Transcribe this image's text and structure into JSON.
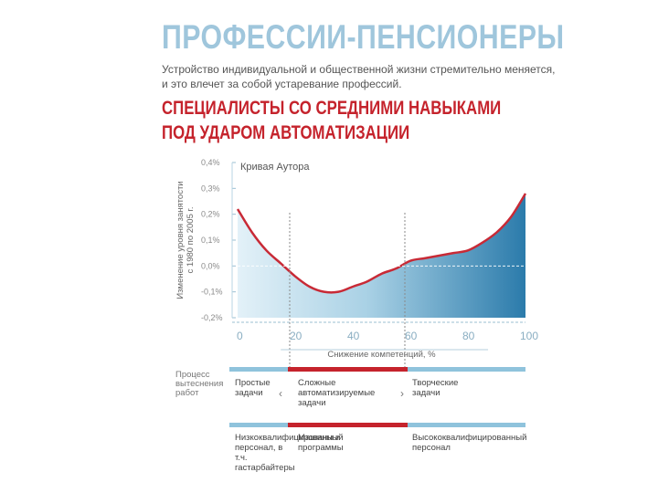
{
  "header": {
    "title": "ПРОФЕССИИ-ПЕНСИОНЕРЫ",
    "intro_line1": "Устройство индивидуальной и общественной жизни стремительно меняется,",
    "intro_line2": "и это влечет за собой устаревание профессий.",
    "red_line1": "СПЕЦИАЛИСТЫ СО СРЕДНИМИ НАВЫКАМИ",
    "red_line2": "ПОД УДАРОМ АВТОМАТИЗАЦИИ"
  },
  "chart_data": {
    "type": "area",
    "title": "Кривая Аутора",
    "xlabel": "Снижение компетенций, %",
    "ylabel": "Изменение уровня занятости с 1980 по 2005 г.",
    "xlim": [
      0,
      100
    ],
    "ylim": [
      -0.2,
      0.4
    ],
    "x_ticks": [
      "0",
      "20",
      "40",
      "60",
      "80",
      "100"
    ],
    "y_ticks": [
      "0,4%",
      "0,3%",
      "0,2%",
      "0,1%",
      "0,0%",
      "-0,1%",
      "-0,2%"
    ],
    "zero_line": true,
    "series": [
      {
        "x": [
          0,
          5,
          10,
          15,
          20,
          25,
          30,
          35,
          40,
          45,
          50,
          55,
          60,
          65,
          70,
          75,
          80,
          85,
          90,
          95,
          100
        ],
        "y": [
          0.22,
          0.13,
          0.06,
          0.01,
          -0.04,
          -0.08,
          -0.1,
          -0.1,
          -0.08,
          -0.06,
          -0.03,
          -0.01,
          0.02,
          0.03,
          0.04,
          0.05,
          0.06,
          0.09,
          0.13,
          0.19,
          0.28
        ]
      }
    ],
    "dividers_x": [
      20,
      60
    ]
  },
  "legend_rows": {
    "row1_label": "Процесс вытеснения работ",
    "row1_items": [
      "Простые задачи",
      "Сложные автоматизируемые задачи",
      "Творческие задачи"
    ],
    "row2_items": [
      "Низкоквалифицированный персонал, в т.ч. гастарбайтеры",
      "Машины и программы",
      "Высококвалифицированный персонал"
    ]
  },
  "colors": {
    "title_blue": "#9fc6dc",
    "accent_red": "#c5232c",
    "curve_red": "#c82a36",
    "bar_blue": "#8fc3dc",
    "area_light": "#e3f1f8",
    "area_dark": "#2b7bab"
  }
}
